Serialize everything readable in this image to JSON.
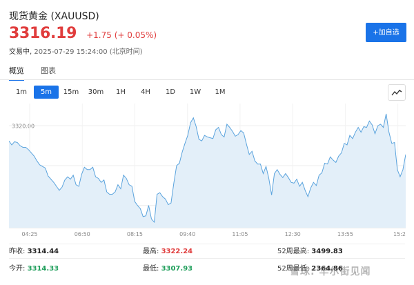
{
  "header": {
    "title": "现货黄金 (XAUUSD)",
    "price": "3316.19",
    "change": "+1.75 (+ 0.05%)",
    "status": "交易中,",
    "time": "2025-07-29 15:24:00 (北京时间)",
    "add_button": "+加自选"
  },
  "tabs": [
    {
      "label": "概览",
      "active": true
    },
    {
      "label": "图表",
      "active": false
    }
  ],
  "ranges": [
    "1m",
    "5m",
    "15m",
    "30m",
    "1H",
    "4H",
    "1D",
    "1W",
    "1M"
  ],
  "active_range": "5m",
  "chart_type_icon": "line-chart-icon",
  "colors": {
    "accent": "#1a73e8",
    "up": "#e03c3c",
    "down": "#1e9e5a",
    "line": "#5aa3dd",
    "fill": "#e3eff9"
  },
  "chart_data": {
    "type": "area",
    "x_ticks": [
      "04:25",
      "06:50",
      "08:15",
      "09:40",
      "11:05",
      "12:30",
      "13:55",
      "15:2"
    ],
    "y_ticks": [
      "3320.00",
      "3315.00",
      "3310.00"
    ],
    "ylim": [
      3307.2,
      3322.8
    ],
    "grid": true,
    "values": [
      3318.1,
      3317.6,
      3318.0,
      3317.9,
      3317.5,
      3317.3,
      3317.3,
      3317.0,
      3316.6,
      3316.2,
      3315.6,
      3315.1,
      3314.9,
      3314.7,
      3313.7,
      3313.3,
      3312.9,
      3312.4,
      3311.9,
      3312.3,
      3313.2,
      3313.6,
      3313.3,
      3313.8,
      3312.6,
      3312.4,
      3313.9,
      3314.8,
      3314.5,
      3314.5,
      3314.8,
      3313.6,
      3313.4,
      3312.9,
      3313.2,
      3311.7,
      3311.4,
      3311.4,
      3311.7,
      3312.6,
      3312.1,
      3313.8,
      3313.4,
      3312.6,
      3312.4,
      3310.5,
      3310.0,
      3309.6,
      3308.6,
      3308.7,
      3310.0,
      3308.3,
      3307.9,
      3311.4,
      3311.6,
      3311.1,
      3310.8,
      3310.1,
      3310.3,
      3312.8,
      3315.0,
      3315.3,
      3316.7,
      3317.8,
      3318.8,
      3320.4,
      3321.0,
      3319.9,
      3318.3,
      3318.1,
      3318.8,
      3318.6,
      3318.5,
      3318.4,
      3319.5,
      3319.8,
      3318.9,
      3318.6,
      3320.2,
      3319.8,
      3319.3,
      3318.7,
      3318.9,
      3319.4,
      3319.1,
      3317.7,
      3316.4,
      3316.8,
      3315.6,
      3315.2,
      3315.2,
      3314.0,
      3314.9,
      3313.4,
      3311.3,
      3314.0,
      3314.5,
      3313.9,
      3313.5,
      3314.0,
      3313.5,
      3312.9,
      3312.8,
      3313.3,
      3312.4,
      3312.9,
      3311.9,
      3311.1,
      3312.2,
      3312.9,
      3312.5,
      3313.8,
      3314.1,
      3315.3,
      3315.2,
      3316.1,
      3315.7,
      3315.4,
      3316.2,
      3316.6,
      3317.8,
      3317.6,
      3318.8,
      3318.4,
      3319.2,
      3319.8,
      3319.2,
      3319.9,
      3319.8,
      3320.6,
      3320.1,
      3319.0,
      3320.0,
      3320.2,
      3319.8,
      3321.5,
      3319.2,
      3317.8,
      3317.9,
      3314.5,
      3313.6,
      3314.5,
      3316.4
    ]
  },
  "stats": {
    "prev_close_label": "昨收:",
    "prev_close": "3314.44",
    "high_label": "最高:",
    "high": "3322.24",
    "w52_high_label": "52周最高:",
    "w52_high": "3499.83",
    "open_label": "今开:",
    "open": "3314.33",
    "low_label": "最低:",
    "low": "3307.93",
    "w52_low_label": "52周最低:",
    "w52_low": "2364.86"
  },
  "watermark": "雪球: 华尔街见闻"
}
